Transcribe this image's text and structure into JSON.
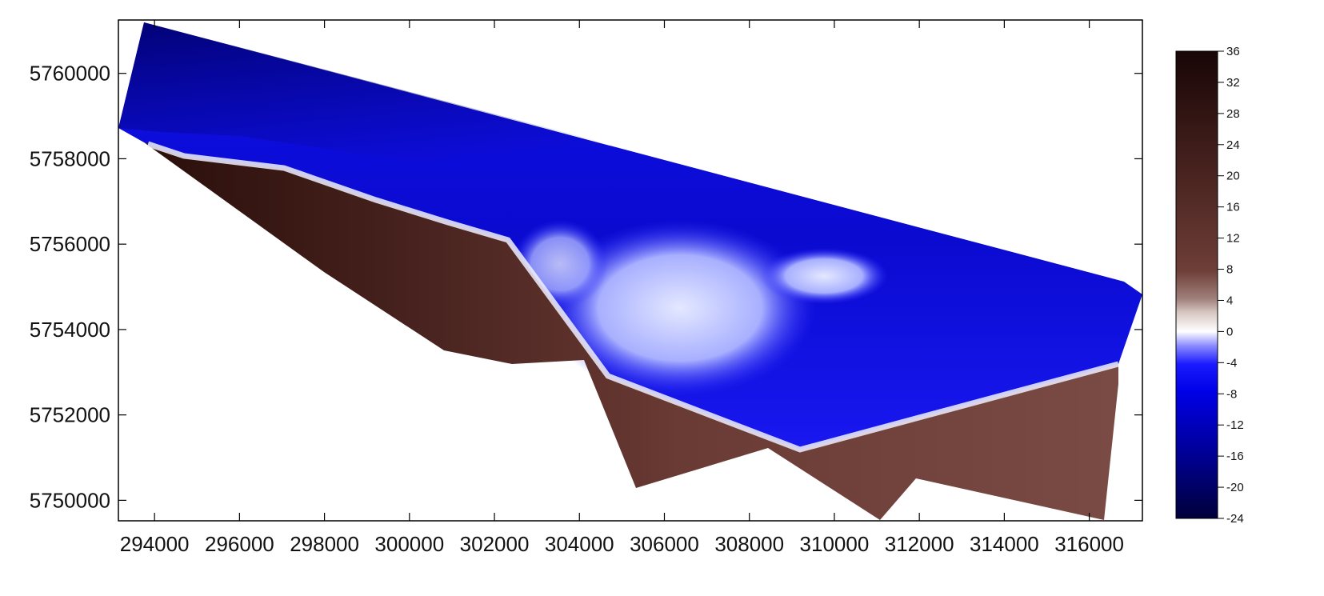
{
  "map": {
    "x_ticks": [
      "294000",
      "296000",
      "298000",
      "300000",
      "302000",
      "304000",
      "306000",
      "308000",
      "310000",
      "312000",
      "314000",
      "316000"
    ],
    "y_ticks": [
      "5760000",
      "5758000",
      "5756000",
      "5754000",
      "5752000",
      "5750000"
    ],
    "x_range": [
      293150,
      317250
    ],
    "y_range": [
      5749520,
      5761250
    ]
  },
  "colorbar": {
    "labels": [
      "36",
      "32",
      "28",
      "24",
      "20",
      "16",
      "12",
      "8",
      "4",
      "0",
      "-4",
      "-8",
      "-12",
      "-16",
      "-20",
      "-24"
    ],
    "range": [
      -24,
      36
    ]
  },
  "colors": {
    "deep_water": "#00004a",
    "water": "#0000e0",
    "shallow": "#d8dcf8",
    "land_low": "#9a6e66",
    "land": "#6a3a32",
    "land_high": "#1e0808"
  }
}
